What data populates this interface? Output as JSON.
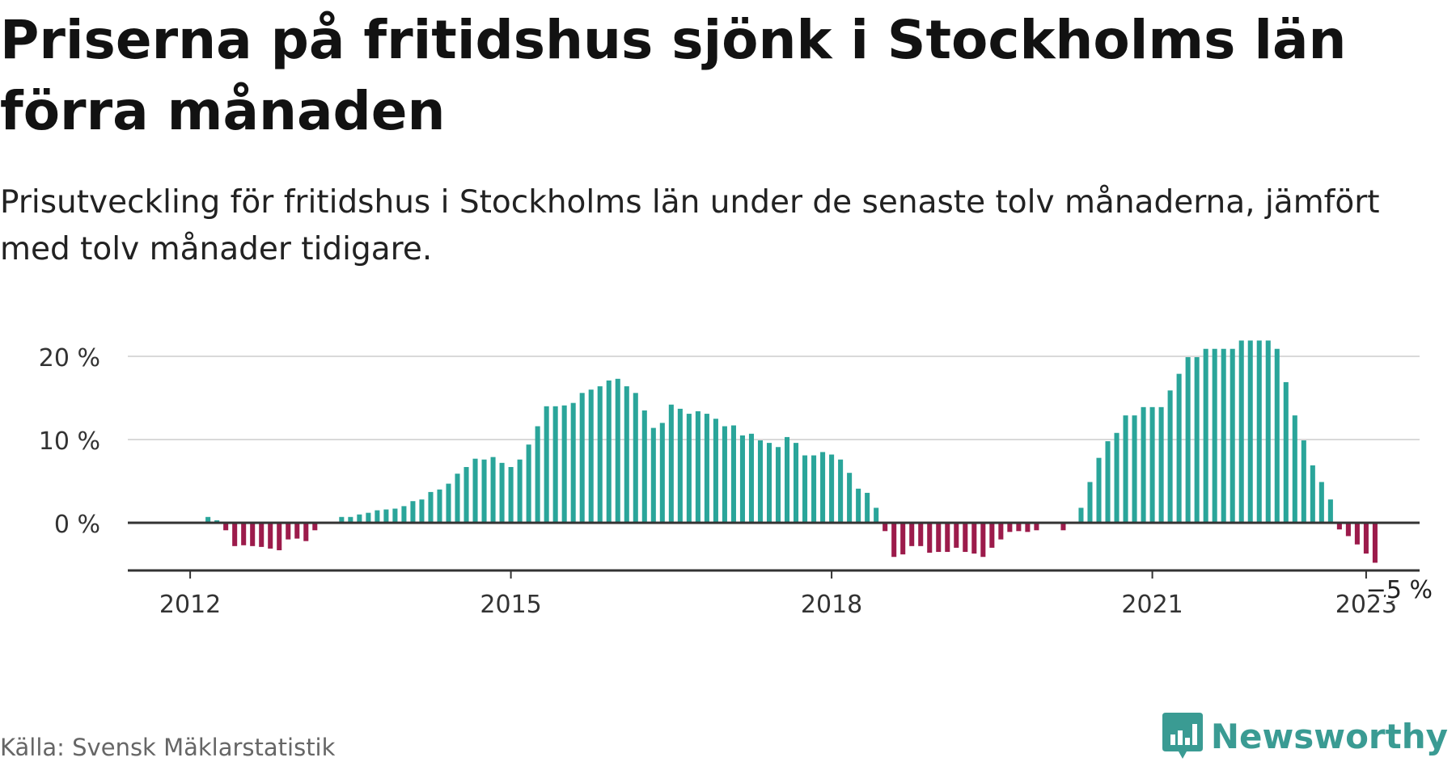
{
  "title": "Priserna på fritidshus sjönk i Stockholms län förra månaden",
  "subtitle": "Prisutveckling för fritidshus i Stockholms län under de senaste tolv månaderna, jämfört med tolv månader tidigare.",
  "source": "Källa: Svensk Mäklarstatistik",
  "brand": {
    "name": "Newsworthy",
    "icon": "newsworthy-logo-icon"
  },
  "colors": {
    "positive": "#2aa59a",
    "negative": "#9c1b4b",
    "gridline": "#d9d9d9",
    "axis": "#333333"
  },
  "chart_data": {
    "type": "bar",
    "title": "",
    "xlabel": "",
    "ylabel": "",
    "y_unit": "%",
    "ylim": [
      -5.5,
      20
    ],
    "yticks": [
      0,
      10,
      20
    ],
    "ytick_labels": [
      "0 %",
      "10 %",
      "20 %"
    ],
    "xticks": [
      "2012-01",
      "2015-01",
      "2018-01",
      "2021-01",
      "2023-01"
    ],
    "xtick_labels": [
      "2012",
      "2015",
      "2018",
      "2021",
      "2023"
    ],
    "x_range": [
      "2011-06",
      "2023-07"
    ],
    "grid": true,
    "legend": "none",
    "end_label": "−5 %",
    "series": [
      {
        "start": "2012-03",
        "interval": "month",
        "values": [
          0.7,
          0.3,
          -0.9,
          -2.8,
          -2.7,
          -2.8,
          -2.9,
          -3.1,
          -3.3,
          -2.0,
          -1.9,
          -2.2,
          -0.9,
          null,
          null,
          0.7,
          0.7,
          1.0,
          1.2,
          1.5,
          1.6,
          1.7,
          2.0,
          2.6,
          2.8,
          3.7,
          4.0,
          4.7,
          5.9,
          6.7,
          7.7,
          7.6,
          7.9,
          7.2,
          6.7,
          7.6,
          9.4,
          11.6,
          14.0,
          14.0,
          14.1,
          14.4,
          15.6,
          16.0,
          16.4,
          17.1,
          17.3,
          16.4,
          15.6,
          13.5,
          11.4,
          12.0,
          14.2,
          13.7,
          13.1,
          13.4,
          13.1,
          12.5,
          11.6,
          11.7,
          10.5,
          10.7,
          9.9,
          9.6,
          9.1,
          10.3,
          9.6,
          8.1,
          8.1,
          8.5,
          8.2,
          7.6,
          6.0,
          4.1,
          3.6,
          1.8,
          -1.0,
          -4.1,
          -3.8,
          -2.8,
          -2.8,
          -3.6,
          -3.5,
          -3.5,
          -3.0,
          -3.5,
          -3.7,
          -4.1,
          -3.0,
          -2.0,
          -1.1,
          -1.0,
          -1.1,
          -0.9,
          null,
          null,
          -0.9,
          null,
          1.8,
          4.9,
          7.8,
          9.8,
          10.8,
          12.9,
          12.9,
          13.9,
          13.9,
          13.9,
          15.9,
          17.9,
          19.9,
          19.9,
          20.9,
          20.9,
          20.9,
          20.9,
          21.9,
          21.9,
          21.9,
          21.9,
          20.9,
          16.9,
          12.9,
          9.9,
          6.9,
          4.9,
          2.8,
          -0.8,
          -1.6,
          -2.6,
          -3.7,
          -4.8
        ]
      }
    ]
  }
}
